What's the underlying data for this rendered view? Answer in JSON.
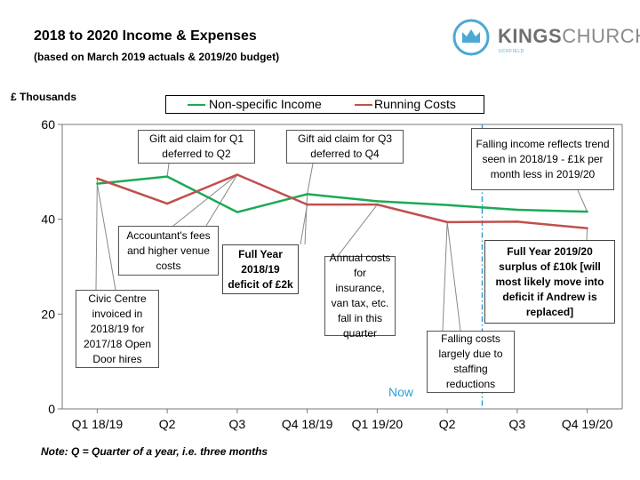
{
  "title": "2018 to 2020 Income & Expenses",
  "subtitle": "(based on March 2019 actuals & 2019/20 budget)",
  "logo": {
    "brand_bold": "KINGS",
    "brand_light": "CHURCH",
    "location": "UCKFIELD",
    "icon": "crown-icon"
  },
  "note": "Note: Q = Quarter of a year, i.e. three months",
  "now_label": "Now",
  "colors": {
    "income": "#1aaa55",
    "costs": "#c0504d",
    "now_line": "#2a9fd8"
  },
  "chart_data": {
    "type": "line",
    "ylabel": "£ Thousands",
    "xlabel": "",
    "categories": [
      "Q1 18/19",
      "Q2",
      "Q3",
      "Q4 18/19",
      "Q1 19/20",
      "Q2",
      "Q3",
      "Q4 19/20"
    ],
    "ylim": [
      0,
      60
    ],
    "yticks": [
      0,
      20,
      40,
      60
    ],
    "grid": false,
    "legend_position": "top",
    "series": [
      {
        "name": "Non-specific Income",
        "values": [
          47.5,
          49,
          41.5,
          45.3,
          43.8,
          43,
          42,
          41.6
        ]
      },
      {
        "name": "Running Costs",
        "values": [
          48.6,
          43.3,
          49.4,
          43.1,
          43.1,
          39.4,
          39.5,
          38.1
        ]
      }
    ],
    "now_marker_x": 5.5,
    "annotations": [
      {
        "id": "gift_q1",
        "text": "Gift aid claim for Q1 deferred to Q2"
      },
      {
        "id": "gift_q3",
        "text": "Gift aid claim for Q3 deferred to Q4"
      },
      {
        "id": "falling_income",
        "text": "Falling income reflects trend seen in 2018/19 - £1k per month less in 2019/20"
      },
      {
        "id": "accountant",
        "text": "Accountant's fees and higher venue costs"
      },
      {
        "id": "fy1819",
        "text": "Full Year 2018/19 deficit of £2k"
      },
      {
        "id": "annual",
        "text": "Annual costs for insurance, van tax, etc. fall in this quarter"
      },
      {
        "id": "fy1920",
        "text": "Full Year 2019/20 surplus of £10k [will most likely move into deficit if Andrew is replaced]"
      },
      {
        "id": "civic",
        "text": "Civic Centre invoiced in 2018/19 for 2017/18 Open Door hires"
      },
      {
        "id": "falling_costs",
        "text": "Falling costs largely due to staffing reductions"
      }
    ]
  }
}
